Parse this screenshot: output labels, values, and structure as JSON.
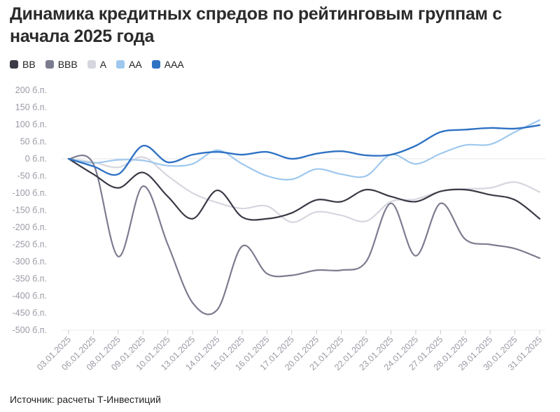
{
  "title": "Динамика кредитных спредов по рейтинговым группам с начала 2025 года",
  "source": "Источник: расчеты Т-Инвестиций",
  "legend": [
    {
      "label": "BB",
      "color": "#3a3a46"
    },
    {
      "label": "BBB",
      "color": "#7c7c90"
    },
    {
      "label": "A",
      "color": "#d6d6df"
    },
    {
      "label": "AA",
      "color": "#9ec8ee"
    },
    {
      "label": "AAA",
      "color": "#2f72c4"
    }
  ],
  "chart_data": {
    "type": "line",
    "xlabel": "",
    "ylabel": "",
    "ylim": [
      -500,
      200
    ],
    "y_ticks": [
      200,
      150,
      100,
      50,
      0,
      -50,
      -100,
      -150,
      -200,
      -250,
      -300,
      -350,
      -400,
      -450,
      -500
    ],
    "y_tick_suffix": " б.п.",
    "grid": "horizontal zero line",
    "legend_position": "top-left",
    "categories": [
      "03.01.2025",
      "06.01.2025",
      "08.01.2025",
      "09.01.2025",
      "10.01.2025",
      "13.01.2025",
      "14.01.2025",
      "15.01.2025",
      "16.01.2025",
      "17.01.2025",
      "20.01.2025",
      "21.01.2025",
      "22.01.2025",
      "23.01.2025",
      "24.01.2025",
      "27.01.2025",
      "28.01.2025",
      "29.01.2025",
      "30.01.2025",
      "31.01.2025"
    ],
    "series": [
      {
        "name": "BB",
        "color": "#3a3a46",
        "values": [
          0,
          -45,
          -85,
          -40,
          -110,
          -175,
          -92,
          -170,
          -175,
          -158,
          -120,
          -125,
          -90,
          -110,
          -125,
          -95,
          -90,
          -105,
          -120,
          -175
        ]
      },
      {
        "name": "BBB",
        "color": "#7c7c90",
        "values": [
          0,
          -15,
          -285,
          -80,
          -250,
          -420,
          -440,
          -255,
          -335,
          -340,
          -325,
          -325,
          -300,
          -130,
          -283,
          -130,
          -235,
          -250,
          -262,
          -290
        ]
      },
      {
        "name": "A",
        "color": "#d6d6df",
        "values": [
          0,
          -10,
          -25,
          5,
          -50,
          -100,
          -128,
          -145,
          -138,
          -185,
          -155,
          -165,
          -182,
          -125,
          -118,
          -95,
          -88,
          -85,
          -68,
          -97
        ]
      },
      {
        "name": "AA",
        "color": "#9ec8ee",
        "values": [
          0,
          -12,
          -3,
          -5,
          -20,
          -15,
          25,
          -15,
          -50,
          -60,
          -30,
          -45,
          -50,
          12,
          -15,
          15,
          40,
          42,
          78,
          113
        ]
      },
      {
        "name": "AAA",
        "color": "#2f72c4",
        "values": [
          0,
          -22,
          -45,
          38,
          -10,
          12,
          20,
          12,
          20,
          0,
          15,
          22,
          10,
          12,
          38,
          78,
          85,
          90,
          88,
          98
        ]
      }
    ]
  }
}
